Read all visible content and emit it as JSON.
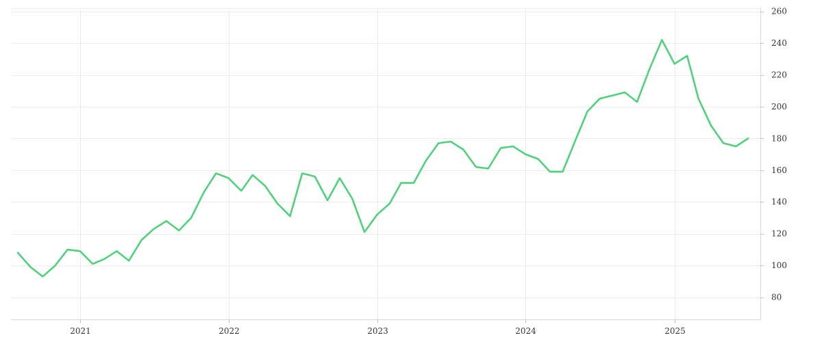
{
  "chart_data": {
    "type": "line",
    "title": "",
    "xlabel": "",
    "ylabel": "",
    "x_ticks": [
      "2021",
      "2022",
      "2023",
      "2024",
      "2025"
    ],
    "y_ticks": [
      80,
      100,
      120,
      140,
      160,
      180,
      200,
      220,
      240,
      260
    ],
    "xlim": [
      "2020-07-15",
      "2025-07-31"
    ],
    "ylim": [
      66,
      262
    ],
    "y_axis_side": "right",
    "grid": true,
    "legend": "none",
    "colors": {
      "line": "#4fd07a",
      "grid": "#ebebeb",
      "axis": "#d8d8d8",
      "text": "#333333"
    },
    "series": [
      {
        "x": [
          "2020-08-01",
          "2020-09-01",
          "2020-10-01",
          "2020-11-01",
          "2020-12-01",
          "2021-01-01",
          "2021-02-01",
          "2021-03-01",
          "2021-04-01",
          "2021-05-01",
          "2021-06-01",
          "2021-07-01",
          "2021-08-01",
          "2021-09-01",
          "2021-10-01",
          "2021-11-01",
          "2021-12-01",
          "2022-01-01",
          "2022-02-01",
          "2022-03-01",
          "2022-04-01",
          "2022-05-01",
          "2022-06-01",
          "2022-07-01",
          "2022-08-01",
          "2022-09-01",
          "2022-10-01",
          "2022-11-01",
          "2022-12-01",
          "2023-01-01",
          "2023-02-01",
          "2023-03-01",
          "2023-04-01",
          "2023-05-01",
          "2023-06-01",
          "2023-07-01",
          "2023-08-01",
          "2023-09-01",
          "2023-10-01",
          "2023-11-01",
          "2023-12-01",
          "2024-01-01",
          "2024-02-01",
          "2024-03-01",
          "2024-04-01",
          "2024-05-01",
          "2024-06-01",
          "2024-07-01",
          "2024-08-01",
          "2024-09-01",
          "2024-10-01",
          "2024-11-01",
          "2024-12-01",
          "2025-01-01",
          "2025-02-01",
          "2025-03-01",
          "2025-04-01",
          "2025-05-01",
          "2025-06-01",
          "2025-07-01"
        ],
        "values": [
          108,
          99,
          93,
          100,
          110,
          109,
          101,
          104,
          109,
          103,
          116,
          123,
          128,
          122,
          130,
          146,
          158,
          155,
          147,
          157,
          150,
          139,
          131,
          158,
          156,
          141,
          155,
          142,
          121,
          132,
          139,
          152,
          152,
          166,
          177,
          178,
          173,
          162,
          161,
          174,
          175,
          170,
          167,
          159,
          159,
          178,
          197,
          205,
          207,
          209,
          203,
          224,
          242,
          227,
          232,
          205,
          188,
          177,
          175,
          180
        ]
      }
    ]
  }
}
